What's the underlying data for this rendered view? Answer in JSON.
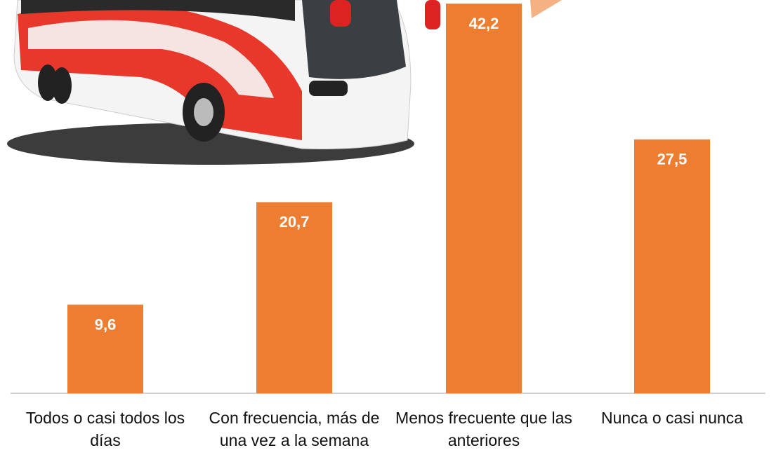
{
  "chart_data": {
    "type": "bar",
    "categories": [
      "Todos o casi todos los días",
      "Con frecuencia, más de una vez a la semana",
      "Menos frecuente que las anteriores",
      "Nunca o casi nunca"
    ],
    "values": [
      9.6,
      20.7,
      42.2,
      27.5
    ],
    "value_labels": [
      "9,6",
      "20,7",
      "42,2",
      "27,5"
    ],
    "color": "#ed7d31"
  }
}
